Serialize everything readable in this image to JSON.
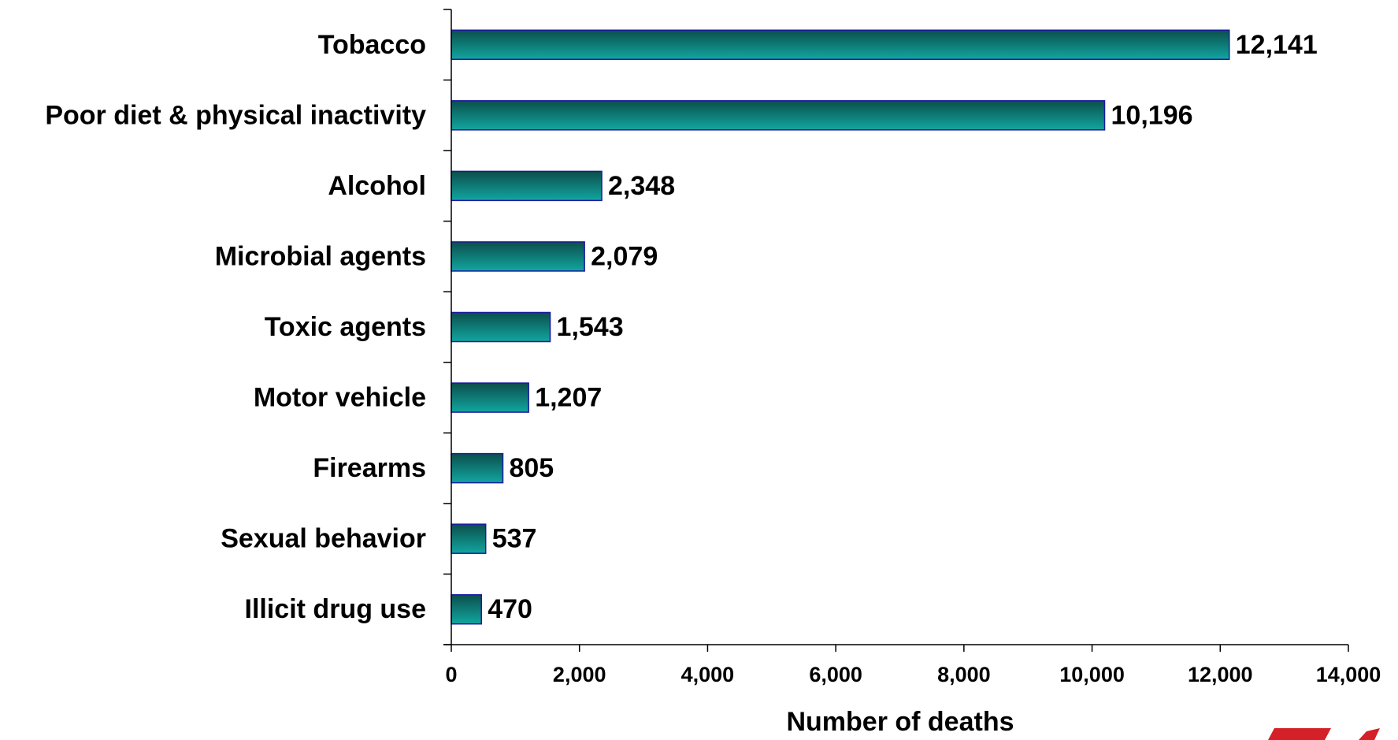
{
  "chart_data": {
    "type": "bar",
    "orientation": "horizontal",
    "categories": [
      "Tobacco",
      "Poor diet & physical inactivity",
      "Alcohol",
      "Microbial agents",
      "Toxic agents",
      "Motor vehicle",
      "Firearms",
      "Sexual behavior",
      "Illicit drug use"
    ],
    "values": [
      12141,
      10196,
      2348,
      2079,
      1543,
      1207,
      805,
      537,
      470
    ],
    "value_labels": [
      "12,141",
      "10,196",
      "2,348",
      "2,079",
      "1,543",
      "1,207",
      "805",
      "537",
      "470"
    ],
    "title": "",
    "xlabel": "Number of deaths",
    "ylabel": "",
    "xlim": [
      0,
      14000
    ],
    "x_ticks": [
      0,
      2000,
      4000,
      6000,
      8000,
      10000,
      12000,
      14000
    ],
    "x_tick_labels": [
      "0",
      "2,000",
      "4,000",
      "6,000",
      "8,000",
      "10,000",
      "12,000",
      "14,000"
    ],
    "grid": false,
    "legend": "none",
    "colors": {
      "bar_dark": "#0b4f4c",
      "bar_light": "#12a6a0",
      "bar_outline": "#1a1aa0",
      "decoration_red": "#d42027"
    }
  }
}
